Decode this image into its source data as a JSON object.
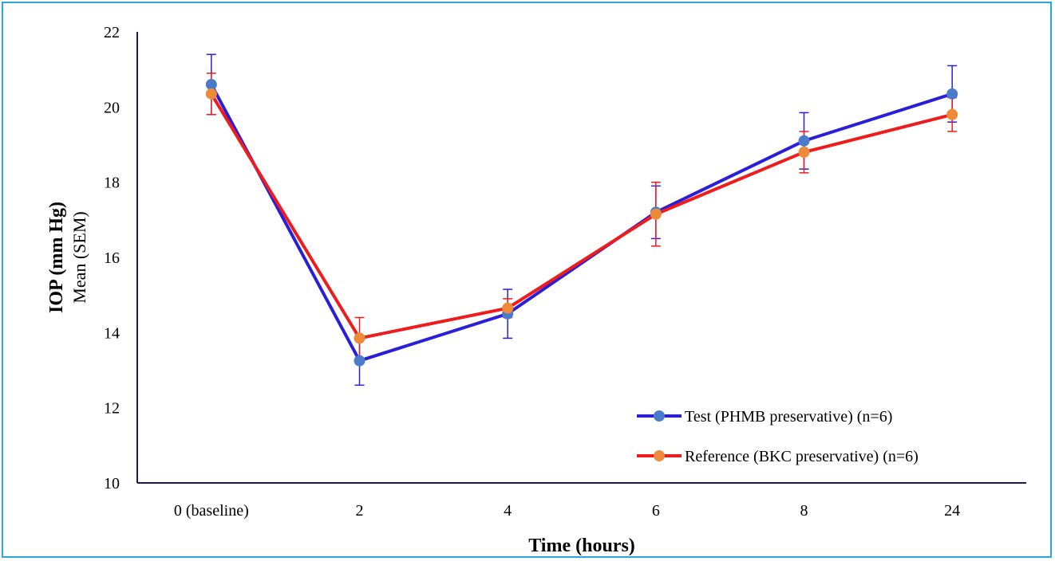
{
  "chart_data": {
    "type": "line",
    "categories": [
      "0 (baseline)",
      "2",
      "4",
      "6",
      "8",
      "24"
    ],
    "xlabel": "Time (hours)",
    "ylabel_bold": "IOP (mm Hg)",
    "ylabel_sub": "Mean (SEM)",
    "ylim": [
      10,
      22
    ],
    "yticks": [
      "10",
      "12",
      "14",
      "16",
      "18",
      "20",
      "22"
    ],
    "grid": false,
    "legend_position": "bottom-right",
    "series": [
      {
        "name": "Test (PHMB preservative) (n=6)",
        "values": [
          20.6,
          13.25,
          14.5,
          17.2,
          19.1,
          20.35
        ],
        "errors": [
          0.8,
          0.65,
          0.65,
          0.7,
          0.75,
          0.75
        ],
        "line_color": "#2a1fd8",
        "marker_color": "#4a7bc8"
      },
      {
        "name": "Reference (BKC preservative) (n=6)",
        "values": [
          20.35,
          13.85,
          14.65,
          17.15,
          18.8,
          19.8
        ],
        "errors": [
          0.55,
          0.55,
          0.25,
          0.85,
          0.55,
          0.45
        ],
        "line_color": "#ee1c1c",
        "marker_color": "#ee8a3a"
      }
    ]
  }
}
